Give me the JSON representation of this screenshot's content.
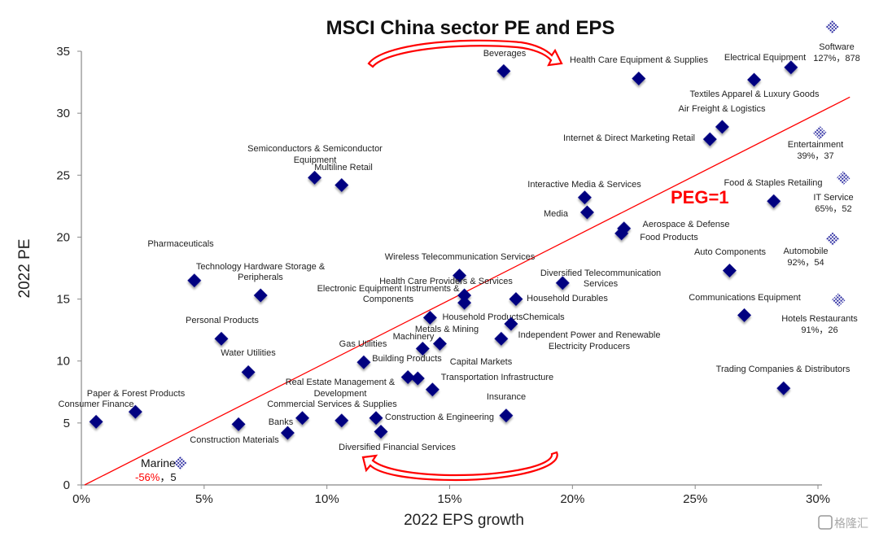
{
  "chart_data": {
    "type": "scatter",
    "title": "MSCI China sector PE and EPS",
    "xlabel": "2022 EPS growth",
    "ylabel": "2022 PE",
    "xlim": [
      0,
      30
    ],
    "ylim": [
      0,
      35
    ],
    "x_unit": "%",
    "x_ticks": [
      "0%",
      "5%",
      "10%",
      "15%",
      "20%",
      "25%",
      "30%"
    ],
    "y_ticks": [
      "0",
      "5",
      "10",
      "15",
      "20",
      "25",
      "30",
      "35"
    ],
    "grid": false,
    "legend": "none",
    "marker_color": "#000080",
    "reference_line": {
      "label": "PEG=1",
      "color": "#ff0000",
      "slope": 1
    },
    "points": [
      {
        "name": "Consumer Finance",
        "x": 0.6,
        "y": 5.1
      },
      {
        "name": "Paper & Forest Products",
        "x": 2.2,
        "y": 5.9
      },
      {
        "name": "Pharmaceuticals",
        "x": 4.6,
        "y": 16.5
      },
      {
        "name": "Technology Hardware Storage & Peripherals",
        "x": 7.3,
        "y": 15.3
      },
      {
        "name": "Personal Products",
        "x": 5.7,
        "y": 11.8
      },
      {
        "name": "Water Utilities",
        "x": 6.8,
        "y": 9.1
      },
      {
        "name": "Construction Materials",
        "x": 6.4,
        "y": 4.9
      },
      {
        "name": "Banks",
        "x": 8.4,
        "y": 4.2
      },
      {
        "name": "Commercial Services & Supplies",
        "x": 9.0,
        "y": 5.4
      },
      {
        "name": "Real Estate Management & Development",
        "x": 10.6,
        "y": 5.2
      },
      {
        "name": "Semiconductors & Semiconductor Equipment",
        "x": 9.5,
        "y": 24.8
      },
      {
        "name": "Multiline Retail",
        "x": 10.6,
        "y": 24.2
      },
      {
        "name": "Gas Utilities",
        "x": 11.5,
        "y": 9.9
      },
      {
        "name": "Construction & Engineering",
        "x": 12.0,
        "y": 5.4
      },
      {
        "name": "Diversified Financial Services",
        "x": 12.2,
        "y": 4.3
      },
      {
        "name": "Building Products",
        "x": 13.3,
        "y": 8.7
      },
      {
        "name": "Capital Markets",
        "x": 13.7,
        "y": 8.6
      },
      {
        "name": "Transportation Infrastructure",
        "x": 14.3,
        "y": 7.7
      },
      {
        "name": "Machinery",
        "x": 13.9,
        "y": 11.0
      },
      {
        "name": "Metals & Mining",
        "x": 14.6,
        "y": 11.4
      },
      {
        "name": "Household Products",
        "x": 14.2,
        "y": 13.5
      },
      {
        "name": "Wireless Telecommunication Services",
        "x": 15.4,
        "y": 16.9
      },
      {
        "name": "Health Care Providers & Services",
        "x": 15.6,
        "y": 15.3
      },
      {
        "name": "Electronic Equipment Instruments & Components",
        "x": 15.6,
        "y": 14.7
      },
      {
        "name": "Chemicals",
        "x": 17.5,
        "y": 13.0
      },
      {
        "name": "Independent Power and Renewable Electricity Producers",
        "x": 17.1,
        "y": 11.8
      },
      {
        "name": "Household Durables",
        "x": 17.7,
        "y": 15.0
      },
      {
        "name": "Insurance",
        "x": 17.3,
        "y": 5.6
      },
      {
        "name": "Diversified Telecommunication Services",
        "x": 19.6,
        "y": 16.3
      },
      {
        "name": "Beverages",
        "x": 17.2,
        "y": 33.4
      },
      {
        "name": "Health Care Equipment & Supplies",
        "x": 22.7,
        "y": 32.8
      },
      {
        "name": "Interactive Media & Services",
        "x": 20.5,
        "y": 23.2
      },
      {
        "name": "Media",
        "x": 20.6,
        "y": 22.0
      },
      {
        "name": "Aerospace & Defense",
        "x": 22.1,
        "y": 20.7
      },
      {
        "name": "Food Products",
        "x": 22.0,
        "y": 20.3
      },
      {
        "name": "Internet & Direct Marketing Retail",
        "x": 25.6,
        "y": 27.9
      },
      {
        "name": "Air Freight & Logistics",
        "x": 26.1,
        "y": 28.9
      },
      {
        "name": "Textiles Apparel & Luxury Goods",
        "x": 27.4,
        "y": 32.7
      },
      {
        "name": "Electrical Equipment",
        "x": 28.9,
        "y": 33.7
      },
      {
        "name": "Food & Staples Retailing",
        "x": 28.2,
        "y": 22.9
      },
      {
        "name": "Auto Components",
        "x": 26.4,
        "y": 17.3
      },
      {
        "name": "Communications Equipment",
        "x": 27.0,
        "y": 13.7
      },
      {
        "name": "Trading Companies & Distributors",
        "x": 28.6,
        "y": 7.8
      }
    ],
    "outliers": [
      {
        "name": "Software",
        "x": 127,
        "y": 878,
        "value_text": "127%，878"
      },
      {
        "name": "Entertainment",
        "x": 39,
        "y": 37,
        "value_text": "39%，37"
      },
      {
        "name": "IT Service",
        "x": 65,
        "y": 52,
        "value_text": "65%，52"
      },
      {
        "name": "Automobile",
        "x": 92,
        "y": 54,
        "value_text": "92%，54"
      },
      {
        "name": "Hotels Restaurants",
        "x": 91,
        "y": 26,
        "value_text": "91%，26"
      },
      {
        "name": "Marine",
        "x": -56,
        "y": 5,
        "value_text_neg": "-56%",
        "value_text_rest": "，5"
      }
    ]
  },
  "watermark": {
    "text": "格隆汇"
  }
}
